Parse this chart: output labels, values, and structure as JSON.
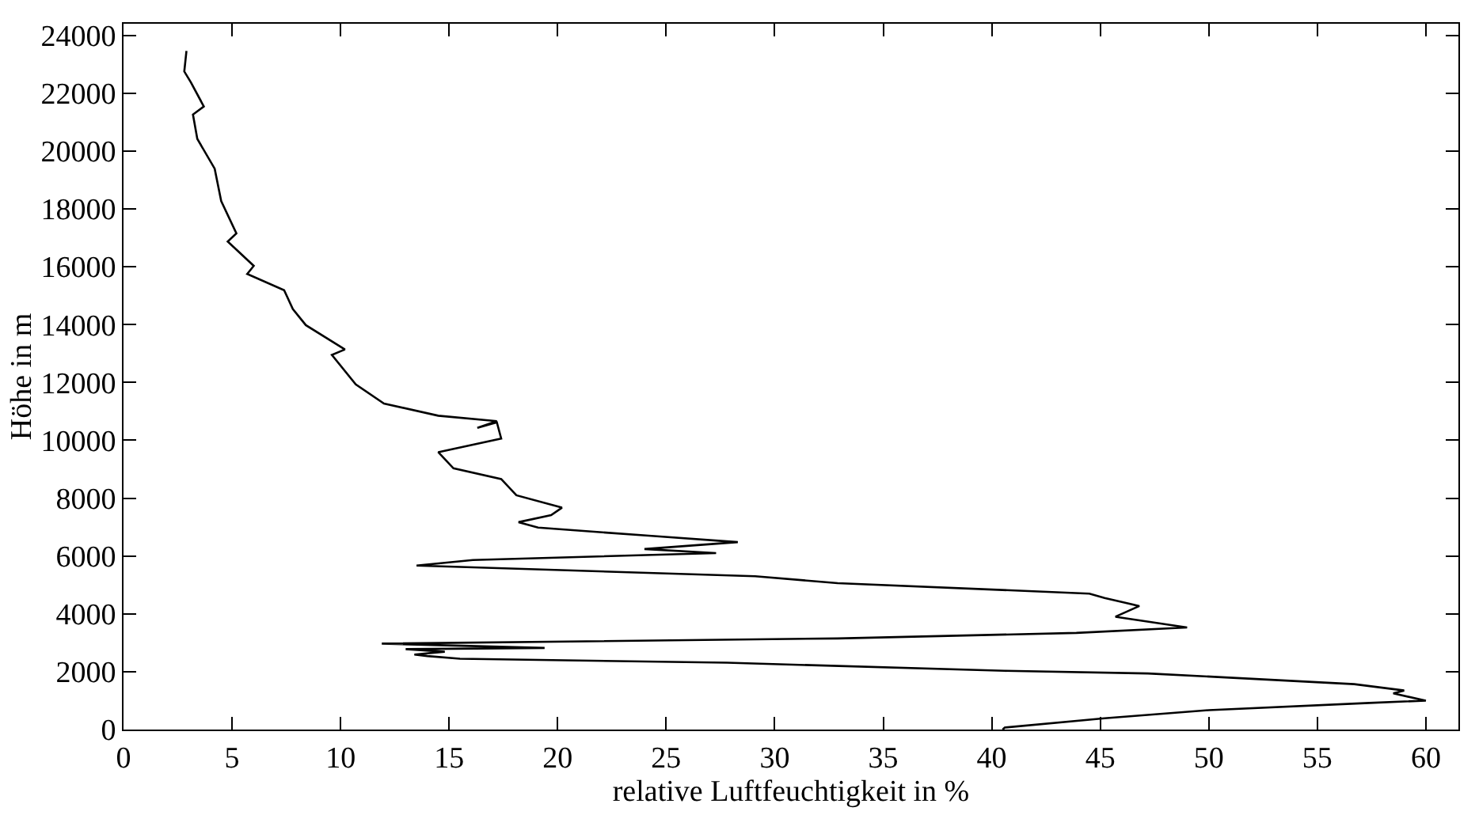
{
  "chart_data": {
    "type": "line",
    "xlabel": "relative Luftfeuchtigkeit in %",
    "ylabel": "Höhe in m",
    "xlim": [
      0,
      61.5
    ],
    "xticks": [
      0,
      5,
      10,
      15,
      20,
      25,
      30,
      35,
      40,
      45,
      50,
      55,
      60
    ],
    "ylim": [
      0,
      24400
    ],
    "yticks": [
      0,
      2000,
      4000,
      6000,
      8000,
      10000,
      12000,
      14000,
      16000,
      18000,
      20000,
      22000,
      24000
    ],
    "grid": false,
    "marker": "none",
    "line_style": "solid",
    "series": [
      {
        "color": "#000000",
        "x": [
          40.5,
          40.6,
          45.2,
          50,
          57.4,
          60,
          58.5,
          59,
          56.7,
          47.2,
          40.6,
          27.8,
          15.5,
          14.0,
          13.4,
          14.8,
          13.0,
          19.4,
          11.9,
          32.9,
          43.9,
          49.0,
          45.7,
          46.8,
          45.2,
          44.5,
          32.9,
          29.1,
          13.5,
          16.1,
          27.3,
          24.0,
          28.3,
          24.2,
          19.1,
          18.2,
          19.7,
          20.2,
          18.1,
          17.4,
          15.2,
          14.5,
          17.4,
          17.2,
          16.3,
          17.2,
          14.5,
          12.0,
          10.7,
          9.6,
          10.2,
          8.4,
          7.8,
          7.4,
          5.7,
          6.0,
          4.8,
          5.2,
          4.5,
          4.2,
          3.4,
          3.2,
          3.7,
          3.1,
          2.8,
          2.9
        ],
        "values": [
          0,
          70,
          390,
          670,
          920,
          1000,
          1250,
          1350,
          1570,
          1940,
          2030,
          2310,
          2450,
          2540,
          2590,
          2690,
          2780,
          2820,
          2970,
          3150,
          3340,
          3530,
          3900,
          4270,
          4550,
          4700,
          5060,
          5300,
          5670,
          5860,
          6100,
          6240,
          6480,
          6700,
          6980,
          7170,
          7410,
          7670,
          8100,
          8660,
          9030,
          9590,
          10060,
          10620,
          10430,
          10660,
          10850,
          11270,
          11930,
          12950,
          13140,
          13980,
          14540,
          15190,
          15750,
          16030,
          16870,
          17150,
          18270,
          19390,
          20420,
          21260,
          21540,
          22380,
          22750,
          23460
        ]
      }
    ]
  }
}
